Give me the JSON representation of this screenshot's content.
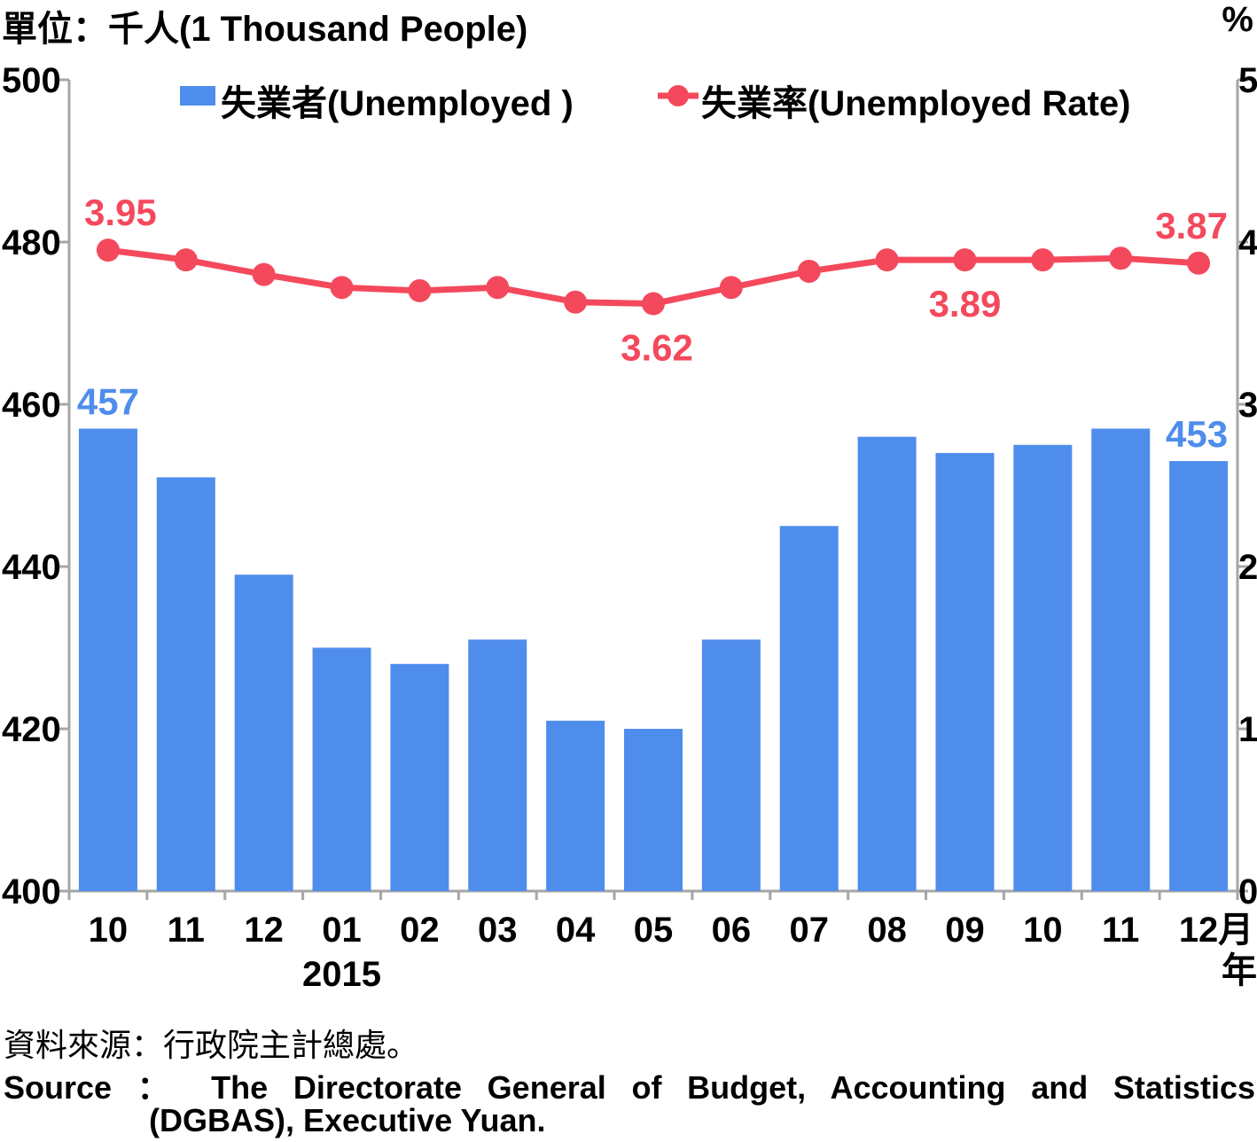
{
  "header": {
    "left_unit": "單位：千人(1 Thousand People)",
    "right_unit": "%"
  },
  "chart_data": {
    "type": "bar",
    "categories": [
      "10",
      "11",
      "12",
      "01",
      "02",
      "03",
      "04",
      "05",
      "06",
      "07",
      "08",
      "09",
      "10",
      "11",
      "12"
    ],
    "year_label": "2015",
    "year_label_category_index": 3,
    "x_suffix_top": "月",
    "x_suffix_bottom": "年",
    "series": [
      {
        "name": "失業者(Unemployed )",
        "type": "bar",
        "axis": "left",
        "color": "#4f8dec",
        "values": [
          457,
          451,
          439,
          430,
          428,
          431,
          421,
          420,
          431,
          445,
          456,
          454,
          455,
          457,
          453
        ]
      },
      {
        "name": "失業率(Unemployed Rate)",
        "type": "line",
        "axis": "right",
        "color": "#f4495c",
        "values": [
          3.95,
          3.89,
          3.8,
          3.72,
          3.7,
          3.72,
          3.63,
          3.62,
          3.72,
          3.82,
          3.89,
          3.89,
          3.89,
          3.9,
          3.87
        ]
      }
    ],
    "data_labels": [
      {
        "series": 0,
        "index": 0,
        "text": "457"
      },
      {
        "series": 0,
        "index": 14,
        "text": "453"
      },
      {
        "series": 1,
        "index": 0,
        "text": "3.95",
        "position": "above"
      },
      {
        "series": 1,
        "index": 7,
        "text": "3.62",
        "position": "below"
      },
      {
        "series": 1,
        "index": 11,
        "text": "3.89",
        "position": "below"
      },
      {
        "series": 1,
        "index": 14,
        "text": "3.87",
        "position": "above"
      }
    ],
    "y_left": {
      "min": 400,
      "max": 500,
      "ticks": [
        400,
        420,
        440,
        460,
        480,
        500
      ]
    },
    "y_right": {
      "min": 0,
      "max": 5,
      "ticks": [
        0,
        1,
        2,
        3,
        4,
        5
      ]
    },
    "grid": false,
    "legend_position": "top"
  },
  "footer": {
    "source_cn": "資料來源：行政院主計總處。",
    "source_en_line1": "Source ： The Directorate General of Budget, Accounting and Statistics",
    "source_en_line2": "(DGBAS), Executive Yuan."
  }
}
